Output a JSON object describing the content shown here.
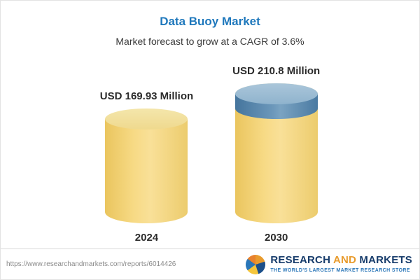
{
  "header": {
    "title": "Data Buoy Market",
    "subtitle": "Market forecast to grow at a CAGR of 3.6%"
  },
  "chart_data": {
    "type": "bar",
    "title": "Data Buoy Market",
    "subtitle": "Market forecast to grow at a CAGR of 3.6%",
    "categories": [
      "2024",
      "2030"
    ],
    "values": [
      169.93,
      210.8
    ],
    "value_labels": [
      "USD 169.93 Million",
      "USD 210.8 Million"
    ],
    "unit": "USD Million",
    "ylim": [
      0,
      210.8
    ],
    "legend_position": "none",
    "grid": false,
    "colors": {
      "bar_body": "#f3d47c",
      "bar_top": "#f0dd9c",
      "growth_segment_body": "#4f81aa",
      "growth_segment_top": "#9fbdd5",
      "title_accent": "#1f78bc"
    }
  },
  "footer": {
    "url": "https://www.researchandmarkets.com/reports/6014426",
    "logo": {
      "part1": "RESEARCH",
      "part2": "AND",
      "part3": "MARKETS",
      "tagline": "THE WORLD'S LARGEST MARKET RESEARCH STORE"
    }
  }
}
